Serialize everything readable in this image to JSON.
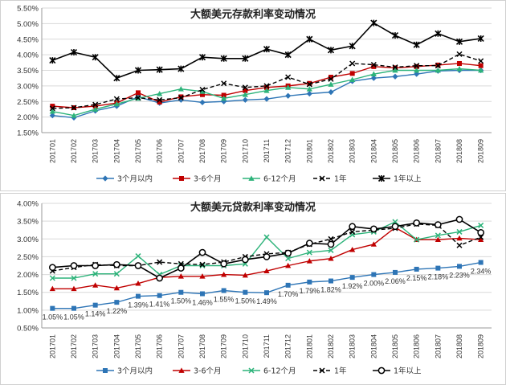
{
  "chart_data": [
    {
      "type": "line",
      "title": "大额美元存款利率变动情况",
      "categories": [
        "201701",
        "201702",
        "201703",
        "201704",
        "201705",
        "201706",
        "201707",
        "201708",
        "201709",
        "201710",
        "201711",
        "201712",
        "201801",
        "201802",
        "201803",
        "201804",
        "201805",
        "201806",
        "201807",
        "201808",
        "201809"
      ],
      "yticks": [
        "1.50%",
        "2.00%",
        "2.50%",
        "3.00%",
        "3.50%",
        "4.00%",
        "4.50%",
        "5.00%",
        "5.50%"
      ],
      "ylim": [
        1.5,
        5.5
      ],
      "series": [
        {
          "name": "3个月以内",
          "color": "#2e75b6",
          "marker": "diamond",
          "dash": "",
          "values": [
            2.05,
            1.98,
            2.2,
            2.35,
            2.65,
            2.45,
            2.55,
            2.47,
            2.5,
            2.55,
            2.58,
            2.68,
            2.75,
            2.8,
            3.15,
            3.25,
            3.3,
            3.38,
            3.48,
            3.5,
            3.5
          ]
        },
        {
          "name": "3-6个月",
          "color": "#c00000",
          "marker": "square",
          "dash": "",
          "values": [
            2.35,
            2.3,
            2.35,
            2.45,
            2.78,
            2.48,
            2.65,
            2.72,
            2.7,
            2.85,
            2.95,
            3.0,
            3.08,
            3.28,
            3.4,
            3.62,
            3.58,
            3.62,
            3.67,
            3.72,
            3.65
          ]
        },
        {
          "name": "6-12个月",
          "color": "#2db37a",
          "marker": "triangle",
          "dash": "",
          "values": [
            2.18,
            2.05,
            2.25,
            2.42,
            2.6,
            2.75,
            2.9,
            2.82,
            2.6,
            2.72,
            2.85,
            2.95,
            2.9,
            3.05,
            3.2,
            3.38,
            3.5,
            3.5,
            3.5,
            3.55,
            3.5
          ]
        },
        {
          "name": "1年",
          "color": "#000000",
          "marker": "x",
          "dash": "5,3",
          "values": [
            2.28,
            2.3,
            2.4,
            2.58,
            2.62,
            2.55,
            2.62,
            2.88,
            3.08,
            2.95,
            3.0,
            3.28,
            3.05,
            3.22,
            3.72,
            3.68,
            3.6,
            3.65,
            3.65,
            4.02,
            3.8
          ]
        },
        {
          "name": "1年以上",
          "color": "#000000",
          "marker": "star",
          "dash": "",
          "values": [
            3.82,
            4.08,
            3.92,
            3.25,
            3.5,
            3.52,
            3.55,
            3.92,
            3.88,
            3.88,
            4.18,
            4.0,
            4.5,
            4.15,
            4.28,
            5.02,
            4.62,
            4.32,
            4.68,
            4.42,
            4.52
          ]
        }
      ]
    },
    {
      "type": "line",
      "title": "大额美元贷款利率变动情况",
      "categories": [
        "201701",
        "201702",
        "201703",
        "201704",
        "201705",
        "201706",
        "201707",
        "201708",
        "201709",
        "201710",
        "201711",
        "201712",
        "201801",
        "201802",
        "201803",
        "201804",
        "201805",
        "201806",
        "201807",
        "201808",
        "201809"
      ],
      "yticks": [
        "0.50%",
        "1.00%",
        "1.50%",
        "2.00%",
        "2.50%",
        "3.00%",
        "3.50%",
        "4.00%"
      ],
      "ylim": [
        0.5,
        4.0
      ],
      "series": [
        {
          "name": "3个月以内",
          "color": "#2e75b6",
          "marker": "square",
          "dash": "",
          "values": [
            1.05,
            1.05,
            1.14,
            1.22,
            1.39,
            1.41,
            1.5,
            1.46,
            1.55,
            1.5,
            1.49,
            1.7,
            1.79,
            1.82,
            1.92,
            2.0,
            2.06,
            2.15,
            2.18,
            2.23,
            2.34
          ],
          "labels": [
            "1.05%",
            "1.05%",
            "1.14%",
            "1.22%",
            "1.39%",
            "1.41%",
            "1.50%",
            "1.46%",
            "1.55%",
            "1.50%",
            "1.49%",
            "1.70%",
            "1.79%",
            "1.82%",
            "1.92%",
            "2.00%",
            "2.06%",
            "2.15%",
            "2.18%",
            "2.23%",
            "2.34%"
          ]
        },
        {
          "name": "3-6个月",
          "color": "#c00000",
          "marker": "triangle",
          "dash": "",
          "values": [
            1.6,
            1.6,
            1.7,
            1.62,
            1.75,
            1.92,
            1.95,
            1.95,
            2.0,
            1.98,
            2.1,
            2.25,
            2.38,
            2.45,
            2.7,
            2.85,
            3.32,
            2.98,
            2.98,
            3.02,
            2.98
          ]
        },
        {
          "name": "6-12个月",
          "color": "#2db37a",
          "marker": "x",
          "dash": "",
          "values": [
            1.9,
            1.9,
            2.02,
            2.02,
            2.52,
            2.0,
            2.25,
            2.25,
            2.25,
            2.3,
            3.05,
            2.45,
            2.62,
            2.68,
            3.12,
            3.2,
            3.48,
            2.98,
            3.1,
            3.2,
            3.38
          ]
        },
        {
          "name": "1年",
          "color": "#000000",
          "marker": "x",
          "dash": "5,3",
          "values": [
            2.1,
            2.2,
            2.28,
            2.25,
            2.25,
            2.35,
            2.3,
            2.28,
            2.35,
            2.5,
            2.58,
            2.62,
            2.85,
            3.0,
            3.2,
            3.25,
            3.3,
            3.42,
            3.38,
            2.82,
            3.05
          ]
        },
        {
          "name": "1年以上",
          "color": "#000000",
          "marker": "circle",
          "dash": "",
          "values": [
            2.2,
            2.25,
            2.25,
            2.28,
            2.25,
            1.9,
            2.18,
            2.62,
            2.3,
            2.42,
            2.5,
            2.6,
            2.88,
            2.85,
            3.35,
            3.28,
            3.35,
            3.45,
            3.4,
            3.55,
            3.18
          ]
        }
      ]
    }
  ]
}
